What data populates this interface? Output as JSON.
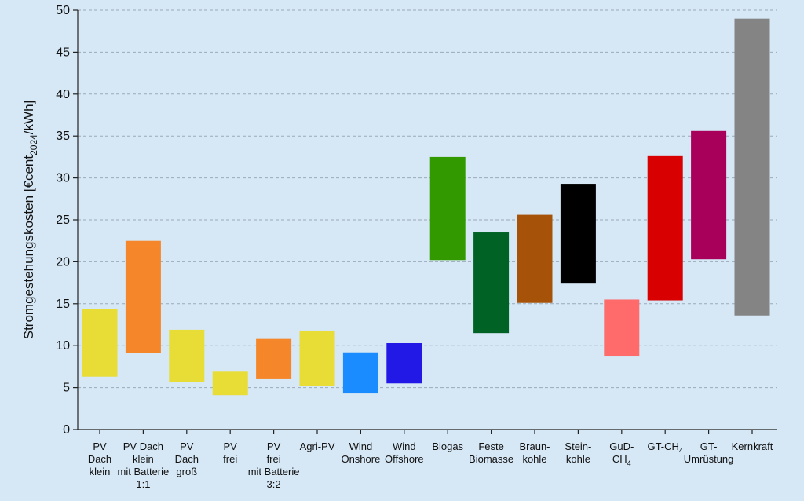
{
  "chart_data": {
    "type": "bar",
    "chart_kind": "floating-range-bar",
    "title": "",
    "xlabel": "",
    "ylabel": {
      "main": "Stromgestehungskosten [€cent",
      "subscript": "2024",
      "tail": "/kWh]"
    },
    "ylim": [
      0,
      50
    ],
    "yticks": [
      0,
      5,
      10,
      15,
      20,
      25,
      30,
      35,
      40,
      45,
      50
    ],
    "ytick_labels": [
      "0",
      "5",
      "10",
      "15",
      "20",
      "25",
      "30",
      "35",
      "40",
      "45",
      "50"
    ],
    "grid": "horizontal dashed",
    "categories": [
      {
        "lines": [
          "PV",
          "Dach",
          "klein"
        ],
        "low": 6.3,
        "high": 14.4,
        "color": "#e8dc36"
      },
      {
        "lines": [
          "PV Dach",
          "klein",
          "mit Batterie",
          "1:1"
        ],
        "low": 9.1,
        "high": 22.5,
        "color": "#f5872a"
      },
      {
        "lines": [
          "PV",
          "Dach",
          "groß"
        ],
        "low": 5.7,
        "high": 11.9,
        "color": "#e8dc36"
      },
      {
        "lines": [
          "PV",
          "frei"
        ],
        "low": 4.1,
        "high": 6.9,
        "color": "#e8dc36"
      },
      {
        "lines": [
          "PV",
          "frei",
          "mit Batterie",
          "3:2"
        ],
        "low": 6.0,
        "high": 10.8,
        "color": "#f5872a"
      },
      {
        "lines": [
          "Agri-PV"
        ],
        "low": 5.2,
        "high": 11.8,
        "color": "#e8dc36"
      },
      {
        "lines": [
          "Wind",
          "Onshore"
        ],
        "low": 4.3,
        "high": 9.2,
        "color": "#1a8cff"
      },
      {
        "lines": [
          "Wind",
          "Offshore"
        ],
        "low": 5.5,
        "high": 10.3,
        "color": "#2219e6"
      },
      {
        "lines": [
          "Biogas"
        ],
        "low": 20.2,
        "high": 32.5,
        "color": "#339900"
      },
      {
        "lines": [
          "Feste",
          "Biomasse"
        ],
        "low": 11.5,
        "high": 23.5,
        "color": "#006325"
      },
      {
        "lines": [
          "Braun-",
          "kohle"
        ],
        "low": 15.1,
        "high": 25.6,
        "color": "#a65208"
      },
      {
        "lines": [
          "Stein-",
          "kohle"
        ],
        "low": 17.4,
        "high": 29.3,
        "color": "#000000"
      },
      {
        "lines": [
          "GuD-",
          "CH|4"
        ],
        "low": 8.8,
        "high": 15.5,
        "color": "#ff6b6b"
      },
      {
        "lines": [
          "GT-CH|4"
        ],
        "low": 15.4,
        "high": 32.6,
        "color": "#d80000"
      },
      {
        "lines": [
          "GT-",
          "Umrüstung"
        ],
        "low": 20.3,
        "high": 35.6,
        "color": "#a8005a"
      },
      {
        "lines": [
          "Kernkraft"
        ],
        "low": 13.6,
        "high": 49.0,
        "color": "#848484"
      }
    ]
  }
}
